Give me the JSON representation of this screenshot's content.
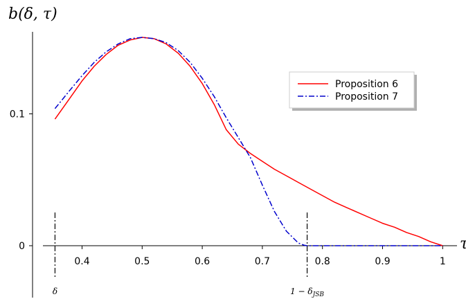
{
  "chart_data": {
    "type": "line",
    "ylabel": "b(δ, τ)",
    "xlabel": "τ",
    "xlim": [
      0.35,
      1.0
    ],
    "ylim": [
      0,
      0.16
    ],
    "x_ticks": [
      "0.4",
      "0.5",
      "0.6",
      "0.7",
      "0.8",
      "0.9",
      "1"
    ],
    "y_ticks": [
      "0",
      "0.1"
    ],
    "grid": false,
    "legend_position": "top-right",
    "markers": [
      {
        "label": "δ",
        "x": 0.355
      },
      {
        "label": "1 − δ_JSB",
        "x": 0.7745
      }
    ],
    "series": [
      {
        "name": "Proposition 6",
        "color": "#ff0000",
        "style": "solid",
        "x": [
          0.355,
          0.38,
          0.4,
          0.42,
          0.44,
          0.46,
          0.48,
          0.5,
          0.52,
          0.54,
          0.56,
          0.58,
          0.6,
          0.62,
          0.64,
          0.66,
          0.68,
          0.7,
          0.72,
          0.74,
          0.76,
          0.78,
          0.8,
          0.82,
          0.84,
          0.86,
          0.88,
          0.9,
          0.92,
          0.94,
          0.96,
          0.98,
          1.0
        ],
        "y": [
          0.096,
          0.112,
          0.125,
          0.136,
          0.145,
          0.152,
          0.156,
          0.158,
          0.157,
          0.153,
          0.146,
          0.136,
          0.123,
          0.107,
          0.088,
          0.077,
          0.07,
          0.064,
          0.058,
          0.053,
          0.048,
          0.043,
          0.038,
          0.033,
          0.029,
          0.025,
          0.021,
          0.017,
          0.014,
          0.01,
          0.007,
          0.003,
          0.0
        ]
      },
      {
        "name": "Proposition 7",
        "color": "#0000cc",
        "style": "dashdot",
        "x": [
          0.355,
          0.38,
          0.4,
          0.42,
          0.44,
          0.46,
          0.48,
          0.5,
          0.52,
          0.54,
          0.56,
          0.58,
          0.6,
          0.62,
          0.64,
          0.66,
          0.68,
          0.7,
          0.72,
          0.74,
          0.76,
          0.77,
          0.7745,
          0.8,
          0.85,
          0.9,
          0.95,
          1.0
        ],
        "y": [
          0.104,
          0.118,
          0.129,
          0.139,
          0.147,
          0.153,
          0.157,
          0.158,
          0.157,
          0.154,
          0.148,
          0.139,
          0.127,
          0.113,
          0.097,
          0.082,
          0.067,
          0.046,
          0.026,
          0.011,
          0.002,
          0.0003,
          0.0,
          0.0,
          0.0,
          0.0,
          0.0,
          0.0
        ]
      }
    ]
  }
}
